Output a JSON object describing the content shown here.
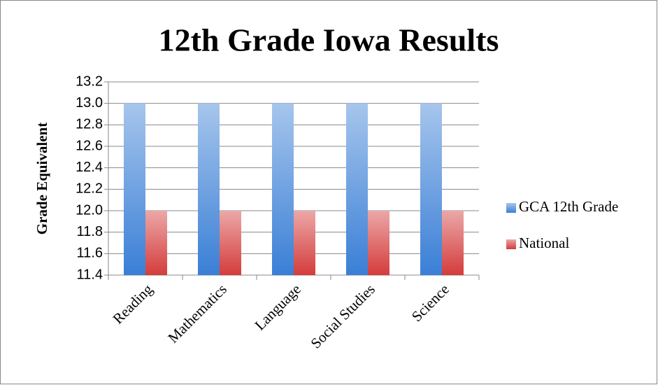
{
  "chart_data": {
    "type": "bar",
    "title": "12th Grade Iowa Results",
    "y_label": "Grade Equivalent",
    "categories": [
      "Reading",
      "Mathematics",
      "Language",
      "Social Studies",
      "Science"
    ],
    "series": [
      {
        "name": "GCA 12th Grade",
        "color": "#3a7fd6",
        "values": [
          13,
          13,
          13,
          13,
          13
        ]
      },
      {
        "name": "National",
        "color": "#d43c3c",
        "values": [
          12,
          12,
          12,
          12,
          12
        ]
      }
    ],
    "ylim": [
      11.4,
      13.2
    ],
    "yticks": [
      11.4,
      11.6,
      11.8,
      {
        "value": 12,
        "label": "12.0"
      },
      12.2,
      12.4,
      12.6,
      12.8,
      {
        "value": 13,
        "label": "13.0"
      },
      13.2
    ],
    "grid": true,
    "legend": "right"
  }
}
